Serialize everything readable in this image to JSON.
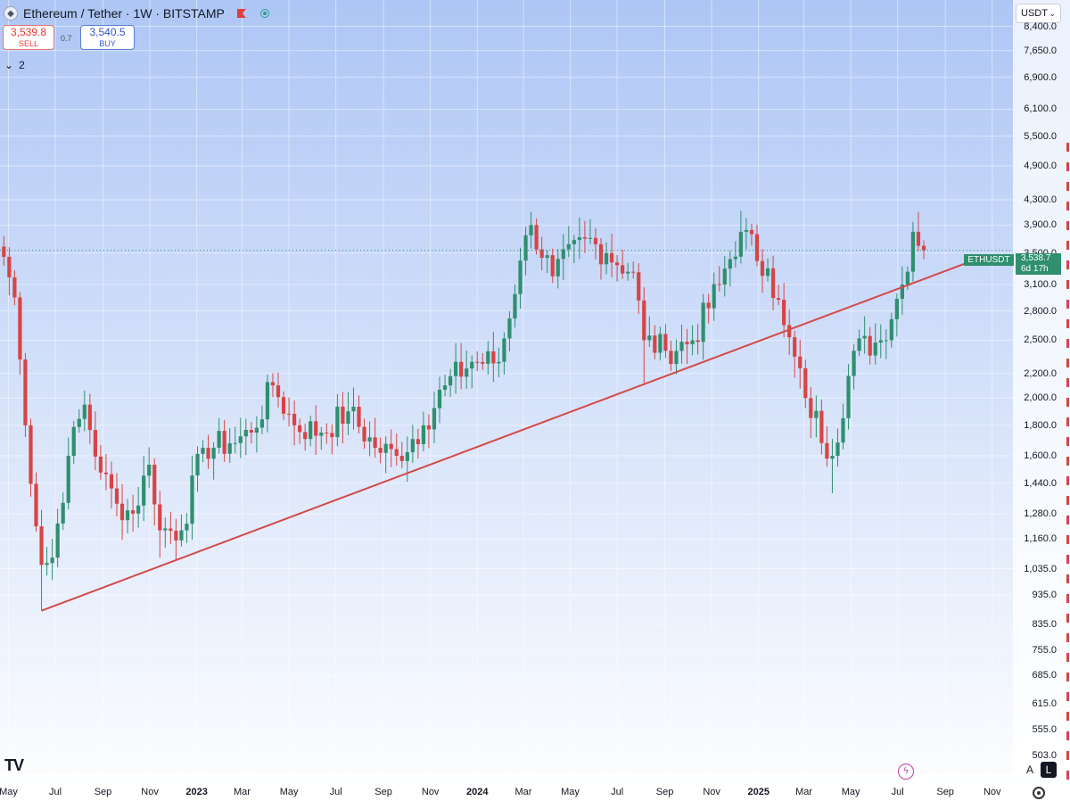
{
  "header": {
    "symbol_title": "Ethereum / Tether · 1W · BITSTAMP",
    "sell_price": "3,539.8",
    "sell_label": "SELL",
    "spread": "0.7",
    "buy_price": "3,540.5",
    "buy_label": "BUY",
    "indicators_count": "2",
    "currency": "USDT"
  },
  "price_label": {
    "symbol": "ETHUSDT",
    "price": "3,538.7",
    "countdown": "6d 17h"
  },
  "colors": {
    "up": "#2f8f6f",
    "down": "#d64545",
    "trendline": "#d24a4a",
    "background_top": "#aec6f5",
    "background_bottom": "#ffffff"
  },
  "icons": [
    "ethereum-tether-icon",
    "red-flag-icon",
    "live-dot-icon",
    "tradingview-logo-icon",
    "lightning-icon",
    "settings-gear-icon"
  ],
  "chart_data": {
    "type": "candlestick",
    "title": "Ethereum / Tether · 1W · BITSTAMP",
    "y_scale": "log",
    "ylim": [
      468,
      9300
    ],
    "y_ticks": [
      "8,400.0",
      "7,650.0",
      "6,900.0",
      "6,100.0",
      "5,500.0",
      "4,900.0",
      "4,300.0",
      "3,900.0",
      "3,500.0",
      "3,100.0",
      "2,800.0",
      "2,500.0",
      "2,200.0",
      "2,000.0",
      "1,800.0",
      "1,600.0",
      "1,440.0",
      "1,280.0",
      "1,160.0",
      "1,035.0",
      "935.0",
      "835.0",
      "755.0",
      "685.0",
      "615.0",
      "555.0",
      "503.0"
    ],
    "x_ticks": [
      "May",
      "Jul",
      "Sep",
      "Nov",
      "2023",
      "Mar",
      "May",
      "Jul",
      "Sep",
      "Nov",
      "2024",
      "Mar",
      "May",
      "Jul",
      "Sep",
      "Nov",
      "2025",
      "Mar",
      "May",
      "Jul",
      "Sep",
      "Nov"
    ],
    "x_range": [
      "2022-04-20",
      "2025-11-28"
    ],
    "grid": true,
    "last_price": 3538.7,
    "anchor_closes": [
      [
        "2022-04-25",
        3450
      ],
      [
        "2022-05-09",
        2950
      ],
      [
        "2022-05-23",
        1800
      ],
      [
        "2022-06-13",
        1050
      ],
      [
        "2022-06-27",
        1080
      ],
      [
        "2022-07-18",
        1600
      ],
      [
        "2022-08-08",
        1950
      ],
      [
        "2022-08-29",
        1500
      ],
      [
        "2022-09-19",
        1330
      ],
      [
        "2022-10-10",
        1280
      ],
      [
        "2022-11-01",
        1560
      ],
      [
        "2022-11-14",
        1200
      ],
      [
        "2022-12-12",
        1200
      ],
      [
        "2023-01-09",
        1650
      ],
      [
        "2023-02-13",
        1680
      ],
      [
        "2023-03-13",
        1750
      ],
      [
        "2023-04-10",
        2100
      ],
      [
        "2023-05-08",
        1800
      ],
      [
        "2023-06-12",
        1750
      ],
      [
        "2023-07-17",
        1900
      ],
      [
        "2023-08-21",
        1650
      ],
      [
        "2023-09-18",
        1600
      ],
      [
        "2023-10-23",
        1800
      ],
      [
        "2023-11-20",
        2100
      ],
      [
        "2023-12-25",
        2300
      ],
      [
        "2024-01-29",
        2300
      ],
      [
        "2024-02-26",
        3400
      ],
      [
        "2024-03-11",
        3900
      ],
      [
        "2024-04-08",
        3200
      ],
      [
        "2024-05-20",
        3700
      ],
      [
        "2024-06-17",
        3500
      ],
      [
        "2024-07-22",
        3250
      ],
      [
        "2024-08-05",
        2500
      ],
      [
        "2024-09-02",
        2400
      ],
      [
        "2024-10-07",
        2500
      ],
      [
        "2024-11-11",
        3100
      ],
      [
        "2024-12-09",
        3800
      ],
      [
        "2025-01-13",
        3300
      ],
      [
        "2025-02-03",
        2650
      ],
      [
        "2025-03-03",
        2000
      ],
      [
        "2025-04-07",
        1600
      ],
      [
        "2025-05-05",
        2400
      ],
      [
        "2025-06-09",
        2500
      ],
      [
        "2025-07-07",
        3100
      ],
      [
        "2025-07-21",
        3800
      ],
      [
        "2025-07-28",
        3600
      ],
      [
        "2025-08-04",
        3538.7
      ]
    ],
    "lows": [
      [
        "2022-06-13",
        880
      ],
      [
        "2022-11-14",
        1080
      ],
      [
        "2024-08-05",
        2120
      ],
      [
        "2025-04-07",
        1385
      ]
    ],
    "highs": [
      [
        "2024-03-11",
        4100
      ],
      [
        "2024-12-09",
        4120
      ],
      [
        "2025-07-21",
        3950
      ]
    ],
    "trendline": [
      [
        "2022-06-13",
        880
      ],
      [
        "2025-10-20",
        3450
      ]
    ]
  }
}
